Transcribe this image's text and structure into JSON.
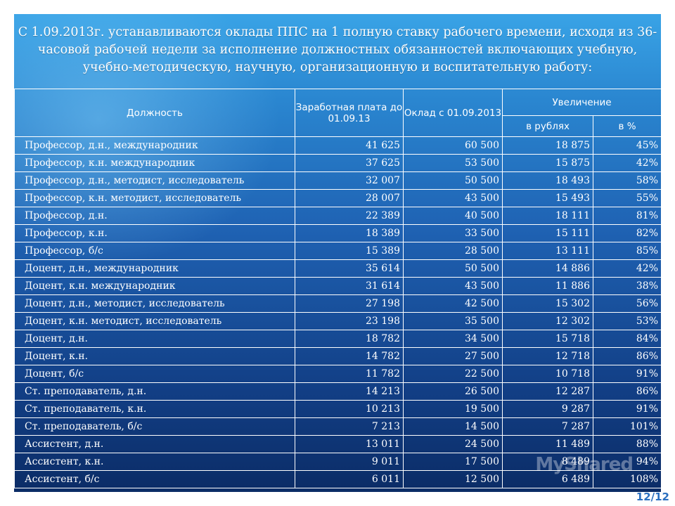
{
  "header": {
    "title": "С 1.09.2013г. устанавливаются оклады ППС на 1 полную ставку рабочего времени, исходя из 36-часовой рабочей недели за исполнение должностных обязанностей включающих учебную, учебно-методическую, научную, организационную и воспитательную работу:"
  },
  "table": {
    "columns": {
      "position": "Должность",
      "salary_before": "Заработная плата до 01.09.13",
      "salary_from": "Оклад с 01.09.2013",
      "increase": "Увеличение",
      "increase_rub": "в рублях",
      "increase_pct": "в %"
    },
    "rows": [
      {
        "position": "Профессор, д.н., международник",
        "before": "41 625",
        "from": "60 500",
        "rub": "18 875",
        "pct": "45%"
      },
      {
        "position": "Профессор, к.н. международник",
        "before": "37 625",
        "from": "53 500",
        "rub": "15 875",
        "pct": "42%"
      },
      {
        "position": "Профессор, д.н., методист, исследователь",
        "before": "32 007",
        "from": "50 500",
        "rub": "18 493",
        "pct": "58%"
      },
      {
        "position": "Профессор, к.н. методист, исследователь",
        "before": "28 007",
        "from": "43 500",
        "rub": "15 493",
        "pct": "55%"
      },
      {
        "position": "Профессор, д.н.",
        "before": "22 389",
        "from": "40 500",
        "rub": "18 111",
        "pct": "81%"
      },
      {
        "position": "Профессор, к.н.",
        "before": "18 389",
        "from": "33 500",
        "rub": "15 111",
        "pct": "82%"
      },
      {
        "position": "Профессор, б/с",
        "before": "15 389",
        "from": "28 500",
        "rub": "13 111",
        "pct": "85%"
      },
      {
        "position": "Доцент, д.н., международник",
        "before": "35 614",
        "from": "50 500",
        "rub": "14 886",
        "pct": "42%"
      },
      {
        "position": "Доцент, к.н. международник",
        "before": "31 614",
        "from": "43 500",
        "rub": "11 886",
        "pct": "38%"
      },
      {
        "position": "Доцент, д.н., методист, исследователь",
        "before": "27 198",
        "from": "42 500",
        "rub": "15 302",
        "pct": "56%"
      },
      {
        "position": "Доцент, к.н. методист, исследователь",
        "before": "23 198",
        "from": "35 500",
        "rub": "12 302",
        "pct": "53%"
      },
      {
        "position": "Доцент, д.н.",
        "before": "18 782",
        "from": "34 500",
        "rub": "15 718",
        "pct": "84%"
      },
      {
        "position": "Доцент, к.н.",
        "before": "14 782",
        "from": "27 500",
        "rub": "12 718",
        "pct": "86%"
      },
      {
        "position": "Доцент, б/с",
        "before": "11 782",
        "from": "22 500",
        "rub": "10 718",
        "pct": "91%"
      },
      {
        "position": "Ст. преподаватель, д.н.",
        "before": "14 213",
        "from": "26 500",
        "rub": "12 287",
        "pct": "86%"
      },
      {
        "position": "Ст. преподаватель, к.н.",
        "before": "10 213",
        "from": "19 500",
        "rub": "9 287",
        "pct": "91%"
      },
      {
        "position": "Ст. преподаватель, б/с",
        "before": "7 213",
        "from": "14 500",
        "rub": "7 287",
        "pct": "101%"
      },
      {
        "position": "Ассистент, д.н.",
        "before": "13 011",
        "from": "24 500",
        "rub": "11 489",
        "pct": "88%"
      },
      {
        "position": "Ассистент, к.н.",
        "before": "9 011",
        "from": "17 500",
        "rub": "8 489",
        "pct": "94%"
      },
      {
        "position": "Ассистент, б/с",
        "before": "6 011",
        "from": "12 500",
        "rub": "6 489",
        "pct": "108%"
      }
    ]
  },
  "footer": {
    "page_number": "12/12",
    "watermark": "MyShared"
  }
}
